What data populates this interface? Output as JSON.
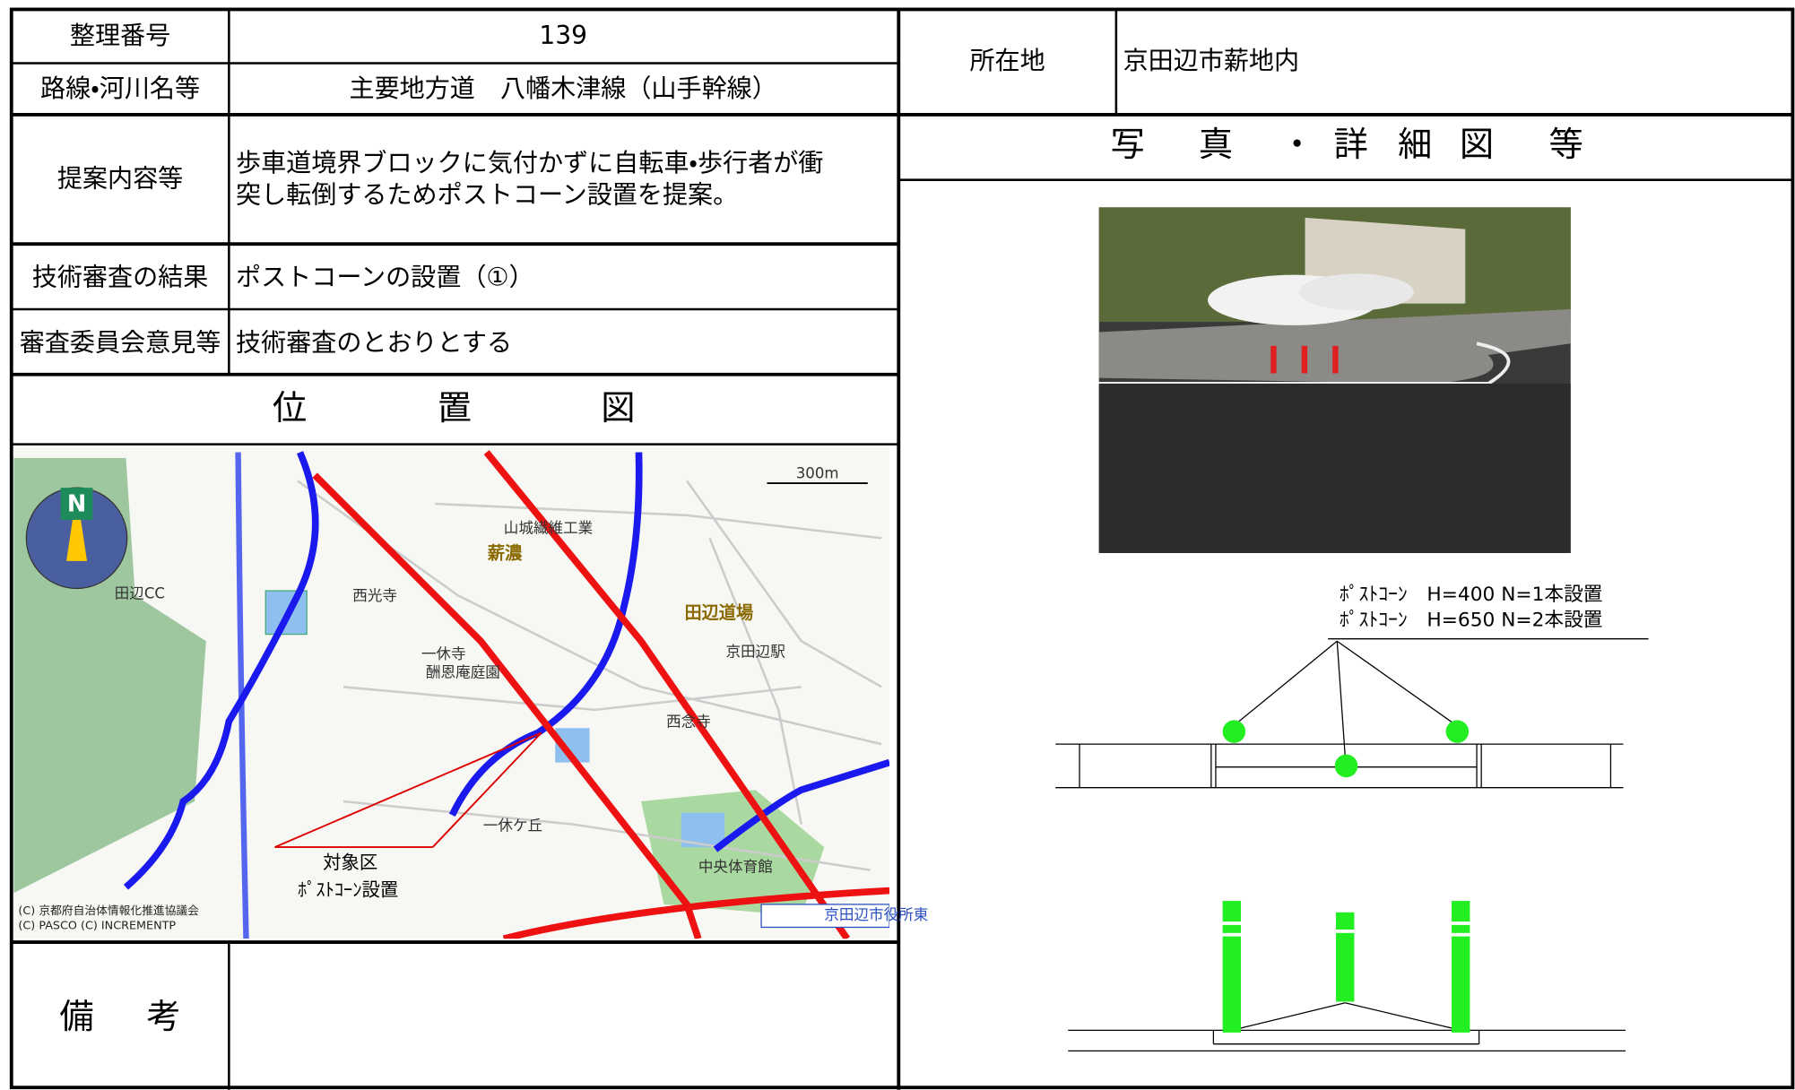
{
  "number_label": "整理番号",
  "number": "139",
  "route_label": "路線・河川名等",
  "route": "主要地方道　八幡木津線（山手幹線）",
  "location_label": "所在地",
  "location": "京田辺市薪地内",
  "proposal_label": "提案内容等",
  "proposal": [
    "歩車道境界ブロックに気付かずに自転車・歩行者が衝",
    "突し転倒するためポストコーン設置を提案。"
  ],
  "review_label": "技術審査の結果",
  "review": "ポストコーンの設置（①）",
  "committee_label": "審査委員会意見等",
  "committee": "技術審査のとおりとする",
  "map_heading": [
    "位",
    "置",
    "図"
  ],
  "photo_heading": [
    "写",
    "真",
    "・",
    "詳",
    "細",
    "図",
    "等"
  ],
  "remarks_label": [
    "備",
    "考"
  ],
  "map_labels": [
    "300m",
    "山城繊維工業",
    "薪濃",
    "西光寺",
    "一休寺",
    "酬恩庵庭園",
    "田辺道場",
    "京田辺駅",
    "西念寺",
    "一休ケ丘",
    "中央体育館",
    "京田辺市役所東",
    "田辺CC",
    "対象区",
    "ﾎﾟｽﾄｺｰﾝ設置",
    "(C) 京都府自治体情報化推進協議会",
    "(C) PASCO  (C) INCREMENTP"
  ],
  "diagram_labels": [
    "ﾎﾟｽﾄｺｰﾝ　H=400 N=1本設置",
    "ﾎﾟｽﾄｺｰﾝ　H=650 N=2本設置"
  ]
}
